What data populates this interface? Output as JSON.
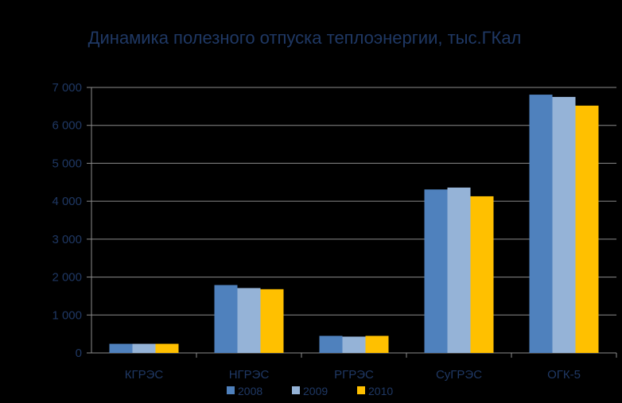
{
  "chart_data": {
    "type": "bar",
    "title": "Динамика полезного отпуска теплоэнергии, тыс.ГКал",
    "xlabel": "",
    "ylabel": "",
    "categories": [
      "КГРЭС",
      "НГРЭС",
      "РГРЭС",
      "СуГРЭС",
      "ОГК-5"
    ],
    "series": [
      {
        "name": "2008",
        "color": "#4F81BD",
        "values": [
          240,
          1790,
          450,
          4310,
          6810
        ]
      },
      {
        "name": "2009",
        "color": "#95B3D7",
        "values": [
          240,
          1710,
          430,
          4360,
          6750
        ]
      },
      {
        "name": "2010",
        "color": "#FFC000",
        "values": [
          240,
          1680,
          450,
          4130,
          6520
        ]
      }
    ],
    "ylim": [
      0,
      7000
    ],
    "yticks": [
      0,
      1000,
      2000,
      3000,
      4000,
      5000,
      6000,
      7000
    ],
    "ytick_labels": [
      "0",
      "1 000",
      "2 000",
      "3 000",
      "4 000",
      "5 000",
      "6 000",
      "7 000"
    ],
    "grid": true,
    "legend_position": "bottom"
  }
}
